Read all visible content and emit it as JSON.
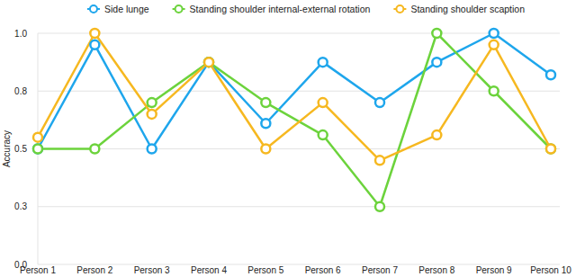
{
  "chart_data": {
    "type": "line",
    "y_label": "Accuracy",
    "categories": [
      "Person 1",
      "Person 2",
      "Person 3",
      "Person 4",
      "Person 5",
      "Person 6",
      "Person 7",
      "Person 8",
      "Person 9",
      "Person 10"
    ],
    "series": [
      {
        "name": "Side lunge",
        "color": "#1ea6ec",
        "marker": "circle",
        "values": [
          0.5,
          0.95,
          0.5,
          0.875,
          0.61,
          0.875,
          0.7,
          0.875,
          1.0,
          0.82
        ]
      },
      {
        "name": "Standing shoulder internal-external rotation",
        "color": "#6cd33c",
        "marker": "circle",
        "values": [
          0.5,
          0.5,
          0.7,
          0.875,
          0.7,
          0.56,
          0.25,
          1.0,
          0.75,
          0.5
        ]
      },
      {
        "name": "Standing shoulder scaption",
        "color": "#f6b820",
        "marker": "circle",
        "values": [
          0.55,
          1.0,
          0.65,
          0.875,
          0.5,
          0.7,
          0.45,
          0.56,
          0.95,
          0.5
        ]
      }
    ],
    "ylim": [
      0,
      1
    ],
    "yticks": [
      {
        "value": 0,
        "label": "0.0"
      },
      {
        "value": 0.25,
        "label": "0.3"
      },
      0.5,
      {
        "value": 0.75,
        "label": "0.8"
      },
      {
        "value": 1,
        "label": "1.0"
      }
    ],
    "grid": true,
    "legend": "top"
  }
}
